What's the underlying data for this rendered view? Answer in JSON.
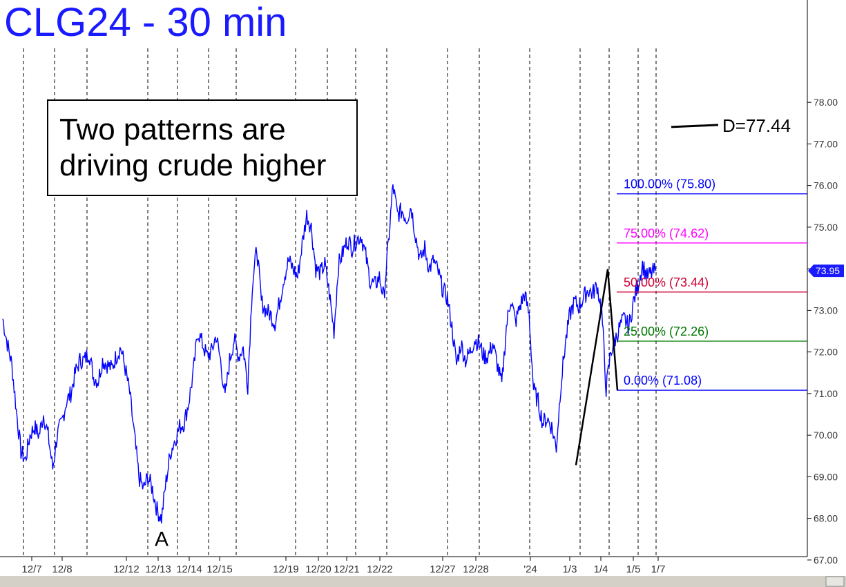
{
  "title": "CLG24 - 30 min",
  "annotation": {
    "line1": "Two patterns are",
    "line2": "driving crude higher"
  },
  "chart_data": {
    "type": "line",
    "symbol": "CLG24",
    "interval": "30 min",
    "ylim": [
      66.6,
      79.0
    ],
    "y_ticks": [
      67.0,
      68.0,
      69.0,
      70.0,
      71.0,
      72.0,
      73.0,
      74.0,
      75.0,
      76.0,
      77.0,
      78.0
    ],
    "y_tick_labels": [
      "67.00",
      "68.00",
      "69.00",
      "70.00",
      "71.00",
      "72.00",
      "73.00",
      "74.00",
      "75.00",
      "76.00",
      "77.00",
      "78.00"
    ],
    "x_tick_labels": [
      "12/7",
      "12/8",
      "12/12",
      "12/13",
      "12/14",
      "12/15",
      "12/19",
      "12/20",
      "12/21",
      "12/22",
      "12/27",
      "12/28",
      "'24",
      "1/3",
      "1/4",
      "1/5",
      "1/7"
    ],
    "grid": "vertical dashed at day boundaries",
    "last_price": 73.95,
    "last_price_label": "73.95",
    "colors": {
      "price": "#0000ff",
      "fib_100": "#0000ff",
      "fib_75": "#ff00ff",
      "fib_50": "#cc0033",
      "fib_25": "#007700",
      "fib_0": "#0000ff",
      "pattern": "#000000",
      "title": "#1a1aff"
    },
    "series": [
      {
        "values": [
          72.8,
          72.2,
          71.7,
          70.6,
          69.6,
          69.4,
          70.0,
          70.2,
          70.0,
          70.5,
          70.0,
          69.2,
          70.0,
          70.3,
          70.8,
          71.0,
          71.5,
          71.8,
          71.8,
          72.0,
          71.4,
          71.3,
          71.8,
          71.7,
          71.6,
          71.9,
          72.1,
          71.6,
          71.0,
          70.0,
          69.0,
          68.7,
          69.0,
          68.7,
          68.2,
          68.0,
          68.9,
          69.6,
          69.9,
          70.2,
          70.3,
          70.8,
          71.5,
          72.5,
          72.2,
          71.9,
          72.0,
          72.4,
          71.8,
          70.9,
          71.8,
          72.3,
          71.9,
          72.1,
          71.2,
          73.6,
          74.5,
          73.2,
          73.0,
          72.9,
          72.7,
          73.2,
          73.8,
          74.2,
          74.0,
          73.8,
          74.6,
          75.3,
          75.0,
          74.0,
          73.9,
          74.1,
          73.4,
          72.5,
          74.1,
          74.4,
          74.7,
          74.5,
          74.7,
          74.8,
          74.3,
          73.7,
          73.6,
          73.8,
          73.3,
          74.6,
          76.0,
          75.3,
          75.4,
          75.2,
          75.5,
          74.8,
          74.2,
          74.5,
          74.0,
          74.2,
          73.9,
          73.5,
          73.3,
          72.6,
          71.7,
          72.2,
          71.8,
          72.0,
          72.3,
          72.2,
          71.9,
          71.9,
          72.2,
          71.7,
          71.2,
          72.6,
          73.3,
          72.7,
          73.1,
          73.4,
          72.9,
          71.1,
          70.8,
          70.3,
          70.4,
          70.2,
          69.7,
          71.2,
          72.2,
          72.9,
          73.2,
          73.1,
          73.3,
          73.5,
          73.4,
          73.6,
          73.0,
          71.1,
          72.0,
          72.3,
          72.6,
          72.8,
          72.6,
          73.2,
          73.6,
          74.1,
          73.8,
          73.9,
          73.95
        ]
      }
    ],
    "pattern_points": [
      {
        "label": "",
        "value": 69.28
      },
      {
        "label": "",
        "value": 73.99
      },
      {
        "label": "",
        "value": 71.08
      }
    ],
    "low_label": {
      "text": "A",
      "value": 68.0
    },
    "target_label": "D=77.44",
    "target_value": 77.44,
    "fib_levels": [
      {
        "label": "100.00% (75.80)",
        "value": 75.8,
        "color": "#0000ff"
      },
      {
        "label": "75.00% (74.62)",
        "value": 74.62,
        "color": "#ff00ff"
      },
      {
        "label": "50.00% (73.44)",
        "value": 73.44,
        "color": "#cc0033"
      },
      {
        "label": "25.00% (72.26)",
        "value": 72.26,
        "color": "#007700"
      },
      {
        "label": "0.00% (71.08)",
        "value": 71.08,
        "color": "#0000ff"
      }
    ]
  }
}
